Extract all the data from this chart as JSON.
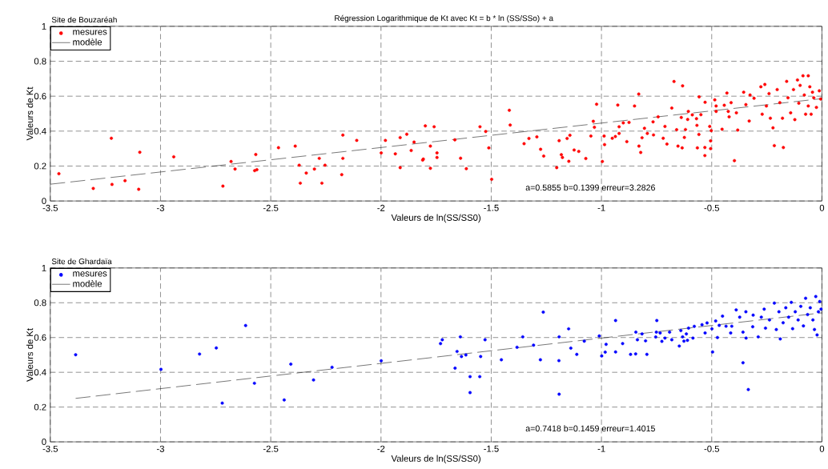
{
  "chart_data": [
    {
      "type": "scatter",
      "title": "Régression Logarithmique de Kt   avec  Kt = b * ln (SS/SSo) + a",
      "subtitle": "Site de Bouzaréah",
      "xlabel": "Valeurs de ln(SS/SS0)",
      "ylabel": "Valeurs de Kt",
      "annotations": [
        "a=0.5855 b=0.1399 erreur=3.2826"
      ],
      "xlim": [
        -3.5,
        0
      ],
      "ylim": [
        0,
        1
      ],
      "xticks": [
        -3.5,
        -3,
        -2.5,
        -2,
        -1.5,
        -1,
        -0.5,
        0
      ],
      "yticks": [
        0,
        0.2,
        0.4,
        0.6,
        0.8,
        1
      ],
      "grid": true,
      "legend": "top left",
      "series": [
        {
          "name": "mesures",
          "marker": "circle",
          "color": "#ff0000",
          "x": [
            -3.461,
            -3.305,
            -3.223,
            -3.22,
            -3.161,
            -3.099,
            -3.094,
            -2.94,
            -2.717,
            -2.68,
            -2.662,
            -2.568,
            -2.573,
            -2.563,
            -2.465,
            -2.389,
            -2.371,
            -2.366,
            -2.339,
            -2.302,
            -2.28,
            -2.268,
            -2.254,
            -2.178,
            -2.173,
            -2.173,
            -2.11,
            -1.999,
            -1.98,
            -1.935,
            -1.913,
            -1.913,
            -1.883,
            -1.863,
            -1.85,
            -1.799,
            -1.759,
            -1.776,
            -1.746,
            -1.746,
            -1.808,
            -1.811,
            -1.776,
            -1.665,
            -1.639,
            -1.613,
            -1.551,
            -1.525,
            -1.511,
            -1.498,
            -1.418,
            -1.414,
            -1.351,
            -1.329,
            -1.293,
            -1.276,
            -1.262,
            -1.203,
            -1.192,
            -1.182,
            -1.177,
            -1.156,
            -1.143,
            -1.148,
            -1.124,
            -1.103,
            -1.071,
            -1.048,
            -1.037,
            -1.032,
            -1.022,
            -0.996,
            -0.988,
            -0.986,
            -0.951,
            -0.937,
            -0.926,
            -0.92,
            -0.92,
            -0.885,
            -0.901,
            -0.875,
            -0.85,
            -0.831,
            -0.83,
            -0.822,
            -0.816,
            -0.805,
            -0.792,
            -0.766,
            -0.764,
            -0.743,
            -0.72,
            -0.712,
            -0.703,
            -0.681,
            -0.671,
            -0.659,
            -0.653,
            -0.638,
            -0.632,
            -0.634,
            -0.624,
            -0.619,
            -0.609,
            -0.606,
            -0.588,
            -0.569,
            -0.567,
            -0.565,
            -0.558,
            -0.557,
            -0.549,
            -0.531,
            -0.531,
            -0.53,
            -0.509,
            -0.505,
            -0.505,
            -0.502,
            -0.486,
            -0.48,
            -0.48,
            -0.453,
            -0.443,
            -0.431,
            -0.425,
            -0.421,
            -0.412,
            -0.397,
            -0.388,
            -0.382,
            -0.355,
            -0.345,
            -0.33,
            -0.326,
            -0.308,
            -0.277,
            -0.271,
            -0.259,
            -0.252,
            -0.24,
            -0.234,
            -0.222,
            -0.216,
            -0.203,
            -0.191,
            -0.179,
            -0.175,
            -0.16,
            -0.154,
            -0.142,
            -0.129,
            -0.123,
            -0.111,
            -0.105,
            -0.099,
            -0.086,
            -0.08,
            -0.074,
            -0.062,
            -0.062,
            -0.055,
            -0.049,
            -0.043,
            -0.037,
            -0.025,
            -0.012,
            -0.006
          ],
          "values": [
            0.156,
            0.072,
            0.359,
            0.095,
            0.116,
            0.067,
            0.279,
            0.253,
            0.085,
            0.226,
            0.183,
            0.266,
            0.174,
            0.179,
            0.305,
            0.314,
            0.205,
            0.102,
            0.16,
            0.183,
            0.244,
            0.102,
            0.205,
            0.151,
            0.377,
            0.244,
            0.347,
            0.275,
            0.347,
            0.27,
            0.363,
            0.191,
            0.382,
            0.289,
            0.337,
            0.43,
            0.425,
            0.314,
            0.275,
            0.249,
            0.24,
            0.234,
            0.187,
            0.35,
            0.245,
            0.185,
            0.425,
            0.398,
            0.304,
            0.124,
            0.519,
            0.435,
            0.328,
            0.358,
            0.367,
            0.296,
            0.257,
            0.191,
            0.345,
            0.265,
            0.249,
            0.358,
            0.376,
            0.227,
            0.292,
            0.284,
            0.243,
            0.372,
            0.456,
            0.422,
            0.554,
            0.226,
            0.372,
            0.323,
            0.359,
            0.369,
            0.549,
            0.425,
            0.387,
            0.34,
            0.447,
            0.45,
            0.544,
            0.612,
            0.314,
            0.278,
            0.362,
            0.416,
            0.387,
            0.453,
            0.378,
            0.482,
            0.359,
            0.427,
            0.326,
            0.532,
            0.684,
            0.408,
            0.314,
            0.478,
            0.659,
            0.304,
            0.364,
            0.409,
            0.467,
            0.513,
            0.493,
            0.471,
            0.433,
            0.304,
            0.381,
            0.596,
            0.494,
            0.306,
            0.26,
            0.565,
            0.427,
            0.3,
            0.344,
            0.403,
            0.579,
            0.544,
            0.513,
            0.411,
            0.548,
            0.618,
            0.513,
            0.482,
            0.563,
            0.231,
            0.505,
            0.406,
            0.623,
            0.552,
            0.458,
            0.607,
            0.588,
            0.654,
            0.497,
            0.667,
            0.544,
            0.615,
            0.474,
            0.419,
            0.317,
            0.638,
            0.563,
            0.474,
            0.306,
            0.685,
            0.591,
            0.505,
            0.638,
            0.466,
            0.693,
            0.56,
            0.662,
            0.717,
            0.607,
            0.497,
            0.717,
            0.544,
            0.654,
            0.497,
            0.623,
            0.591,
            0.536,
            0.631,
            0.584
          ]
        },
        {
          "name": "modèle",
          "type": "line",
          "color": "#000000",
          "line_style": "dashed",
          "x": [
            -3.5,
            0
          ],
          "values": [
            0.096,
            0.586
          ]
        }
      ]
    },
    {
      "type": "scatter",
      "subtitle": "Site de Ghardaïa",
      "xlabel": "Valeurs de ln(SS/SS0)",
      "ylabel": "Valeurs de Kt",
      "annotations": [
        "a=0.7418 b=0.1459 erreur=1.4015"
      ],
      "xlim": [
        -3.5,
        0
      ],
      "ylim": [
        0,
        1
      ],
      "xticks": [
        -3.5,
        -3,
        -2.5,
        -2,
        -1.5,
        -1,
        -0.5,
        0
      ],
      "yticks": [
        0,
        0.2,
        0.4,
        0.6,
        0.8,
        1
      ],
      "grid": true,
      "legend": "top left",
      "series": [
        {
          "name": "mesures",
          "marker": "circle",
          "color": "#0000ff",
          "x": [
            -3.385,
            -2.998,
            -2.823,
            -2.747,
            -2.72,
            -2.614,
            -2.574,
            -2.439,
            -2.409,
            -2.306,
            -2.222,
            -1.999,
            -1.73,
            -1.722,
            -1.664,
            -1.655,
            -1.64,
            -1.635,
            -1.615,
            -1.596,
            -1.596,
            -1.552,
            -1.548,
            -1.528,
            -1.454,
            -1.383,
            -1.357,
            -1.308,
            -1.277,
            -1.264,
            -1.193,
            -1.192,
            -1.192,
            -1.149,
            -1.139,
            -1.112,
            -1.078,
            -1.01,
            -0.999,
            -0.983,
            -0.979,
            -0.936,
            -0.936,
            -0.904,
            -0.868,
            -0.845,
            -0.844,
            -0.837,
            -0.816,
            -0.8,
            -0.794,
            -0.754,
            -0.749,
            -0.751,
            -0.734,
            -0.726,
            -0.712,
            -0.691,
            -0.681,
            -0.647,
            -0.64,
            -0.632,
            -0.626,
            -0.615,
            -0.61,
            -0.605,
            -0.585,
            -0.579,
            -0.544,
            -0.53,
            -0.521,
            -0.496,
            -0.499,
            -0.482,
            -0.474,
            -0.466,
            -0.451,
            -0.435,
            -0.414,
            -0.409,
            -0.389,
            -0.373,
            -0.358,
            -0.358,
            -0.345,
            -0.344,
            -0.334,
            -0.314,
            -0.312,
            -0.289,
            -0.275,
            -0.262,
            -0.256,
            -0.238,
            -0.216,
            -0.207,
            -0.195,
            -0.189,
            -0.176,
            -0.164,
            -0.151,
            -0.139,
            -0.133,
            -0.121,
            -0.108,
            -0.096,
            -0.084,
            -0.074,
            -0.065,
            -0.053,
            -0.041,
            -0.034,
            -0.028,
            -0.022,
            -0.016,
            -0.01,
            -0.004
          ],
          "values": [
            0.501,
            0.417,
            0.505,
            0.54,
            0.223,
            0.669,
            0.337,
            0.241,
            0.447,
            0.356,
            0.429,
            0.466,
            0.565,
            0.587,
            0.424,
            0.52,
            0.604,
            0.491,
            0.5,
            0.375,
            0.283,
            0.375,
            0.491,
            0.587,
            0.472,
            0.544,
            0.604,
            0.556,
            0.472,
            0.746,
            0.467,
            0.274,
            0.604,
            0.65,
            0.539,
            0.503,
            0.579,
            0.609,
            0.494,
            0.516,
            0.561,
            0.698,
            0.517,
            0.565,
            0.503,
            0.506,
            0.631,
            0.587,
            0.621,
            0.581,
            0.503,
            0.603,
            0.698,
            0.631,
            0.626,
            0.578,
            0.597,
            0.631,
            0.587,
            0.551,
            0.64,
            0.604,
            0.579,
            0.621,
            0.584,
            0.654,
            0.597,
            0.664,
            0.674,
            0.626,
            0.684,
            0.517,
            0.65,
            0.695,
            0.6,
            0.67,
            0.723,
            0.665,
            0.626,
            0.665,
            0.759,
            0.717,
            0.455,
            0.631,
            0.748,
            0.597,
            0.301,
            0.662,
            0.729,
            0.604,
            0.717,
            0.763,
            0.654,
            0.701,
            0.798,
            0.646,
            0.748,
            0.592,
            0.685,
            0.771,
            0.717,
            0.802,
            0.651,
            0.748,
            0.701,
            0.779,
            0.667,
            0.826,
            0.732,
            0.771,
            0.701,
            0.646,
            0.836,
            0.615,
            0.748,
            0.807,
            0.763
          ]
        },
        {
          "name": "modèle",
          "type": "line",
          "color": "#000000",
          "line_style": "dashed",
          "x": [
            -3.385,
            0
          ],
          "values": [
            0.25,
            0.742
          ]
        }
      ]
    }
  ]
}
